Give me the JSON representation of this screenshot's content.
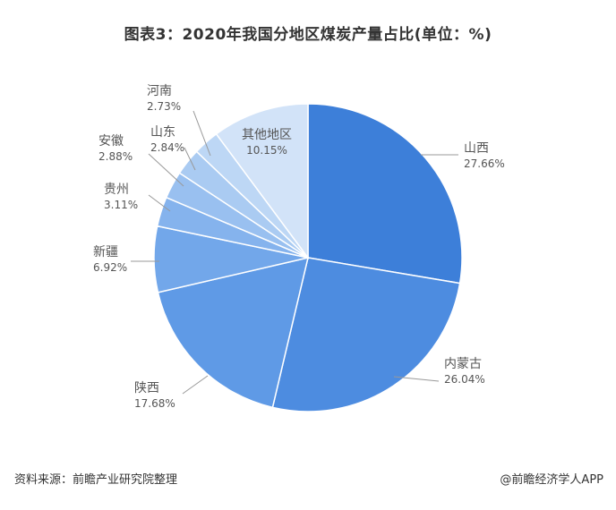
{
  "title": "图表3：2020年我国分地区煤炭产量占比(单位：%)",
  "footer": {
    "source": "资料来源：前瞻产业研究院整理",
    "brand": "@前瞻经济学人APP"
  },
  "chart_data": {
    "type": "pie",
    "title": "图表3：2020年我国分地区煤炭产量占比(单位：%)",
    "unit": "%",
    "start_angle_deg": 0,
    "direction": "clockwise",
    "slices": [
      {
        "name": "山西",
        "value": 27.66,
        "label": "27.66%",
        "color": "#3d7fd9"
      },
      {
        "name": "内蒙古",
        "value": 26.04,
        "label": "26.04%",
        "color": "#4d8ce0"
      },
      {
        "name": "陕西",
        "value": 17.68,
        "label": "17.68%",
        "color": "#5f9ae6"
      },
      {
        "name": "新疆",
        "value": 6.92,
        "label": "6.92%",
        "color": "#72a7ea"
      },
      {
        "name": "贵州",
        "value": 3.11,
        "label": "3.11%",
        "color": "#85b3ed"
      },
      {
        "name": "安徽",
        "value": 2.88,
        "label": "2.88%",
        "color": "#99c0f0"
      },
      {
        "name": "山东",
        "value": 2.84,
        "label": "2.84%",
        "color": "#aacbf2"
      },
      {
        "name": "河南",
        "value": 2.73,
        "label": "2.73%",
        "color": "#bdd7f5"
      },
      {
        "name": "其他地区",
        "value": 10.15,
        "label": "10.15%",
        "color": "#d2e3f8"
      }
    ]
  }
}
